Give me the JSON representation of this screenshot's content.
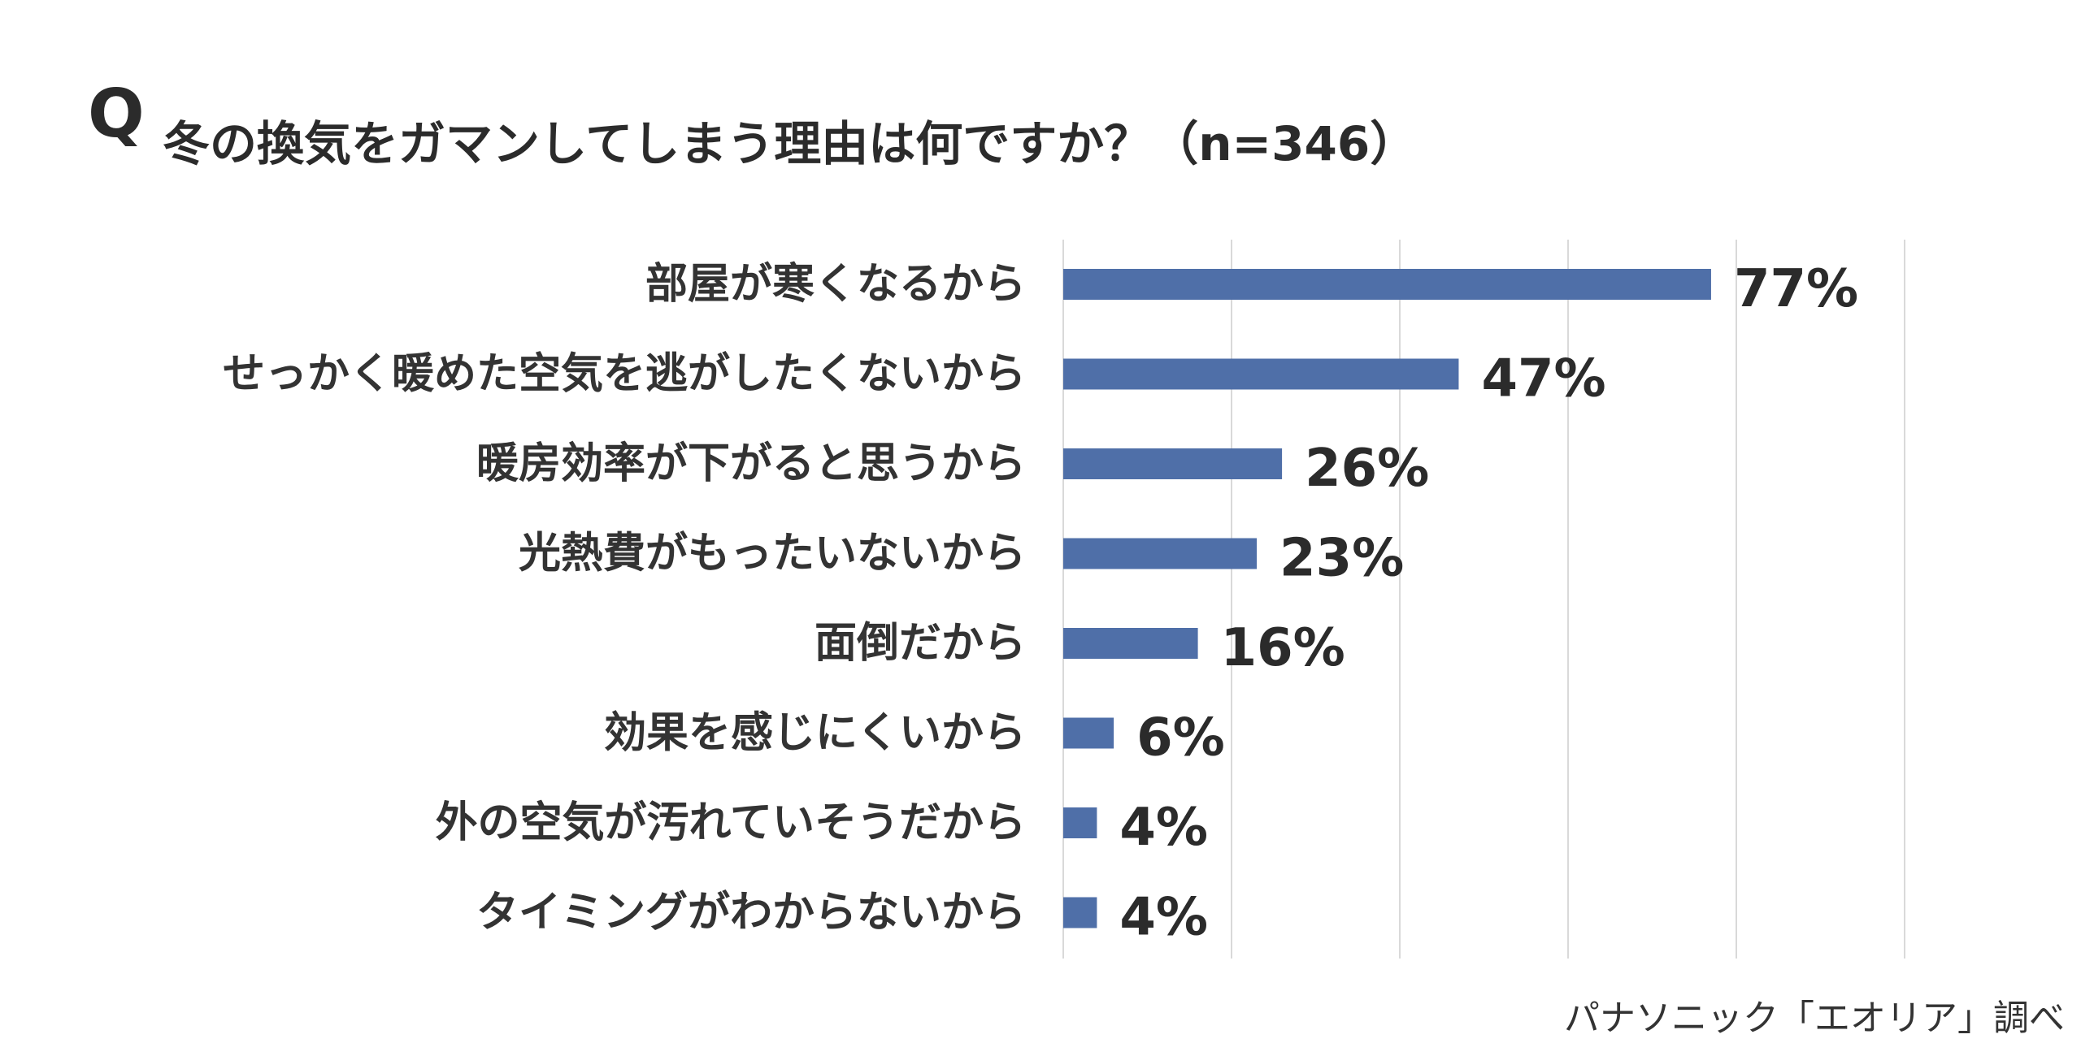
{
  "question_mark": "Q",
  "source": "パナソニック「エオリア」調べ",
  "chart_data": {
    "type": "bar",
    "orientation": "horizontal",
    "title": "冬の換気をガマンしてしまう理由は何ですか？（n=346）",
    "categories": [
      "部屋が寒くなるから",
      "せっかく暖めた空気を逃がしたくないから",
      "暖房効率が下がると思うから",
      "光熱費がもったいないから",
      "面倒だから",
      "効果を感じにくいから",
      "外の空気が汚れていそうだから",
      "タイミングがわからないから"
    ],
    "values": [
      77,
      47,
      26,
      23,
      16,
      6,
      4,
      4
    ],
    "value_labels": [
      "77%",
      "47%",
      "26%",
      "23%",
      "16%",
      "6%",
      "4%",
      "4%"
    ],
    "unit": "%",
    "xlim": [
      0,
      100
    ],
    "grid": true,
    "bar_color": "#4f6fa8",
    "grid_color": "#d9d9d9"
  }
}
